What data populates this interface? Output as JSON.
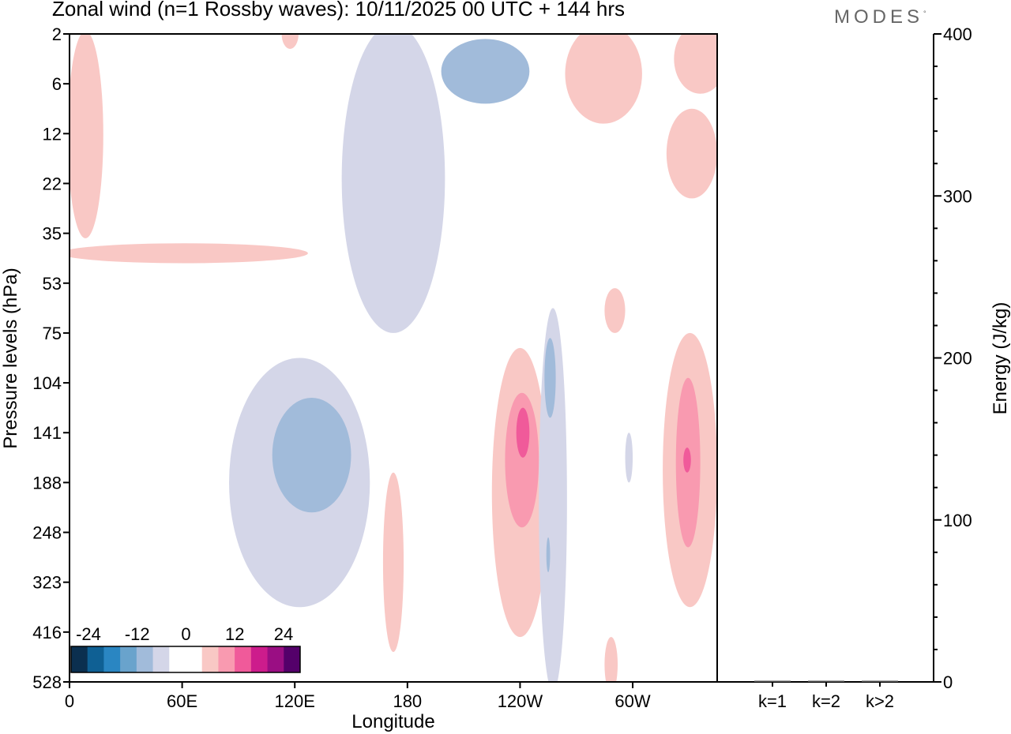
{
  "header": {
    "title": "Zonal wind (n=1 Rossby waves):  10/11/2025  00 UTC  + 144 hrs",
    "brand": "MODES",
    "brand_mark": "°"
  },
  "chart_data": [
    {
      "type": "heatmap",
      "title": "Zonal wind (n=1 Rossby waves)",
      "xlabel": "Longitude",
      "ylabel": "Pressure levels (hPa)",
      "x_ticks": [
        {
          "lon": 0,
          "label": "0"
        },
        {
          "lon": 60,
          "label": "60E"
        },
        {
          "lon": 120,
          "label": "120E"
        },
        {
          "lon": 180,
          "label": "180"
        },
        {
          "lon": 240,
          "label": "120W"
        },
        {
          "lon": 300,
          "label": "60W"
        }
      ],
      "xlim": [
        0,
        345
      ],
      "y_levels": [
        "2",
        "6",
        "12",
        "22",
        "35",
        "53",
        "75",
        "104",
        "141",
        "188",
        "248",
        "323",
        "416",
        "528"
      ],
      "colorbar": {
        "labels": [
          "-24",
          "-12",
          "0",
          "12",
          "24"
        ],
        "colors": [
          "#0b2f4f",
          "#0f6094",
          "#2a86c2",
          "#69a3cc",
          "#a1bbda",
          "#d4d6e8",
          "#ffffff",
          "#ffffff",
          "#f9c8c5",
          "#f99ab0",
          "#f05a9a",
          "#cd1c8c",
          "#9a0e83",
          "#54006a"
        ]
      },
      "regions": [
        {
          "name": "pos-upper-west",
          "lon": [
            18,
            -1
          ],
          "level": [
            -0.06,
            4.1
          ],
          "value": 8
        },
        {
          "name": "pos-small-120e",
          "lon": [
            127,
            -5
          ],
          "level": [
            4.2,
            4.6
          ],
          "value": 8
        },
        {
          "name": "pos-top-145e",
          "lon": [
            113,
            122
          ],
          "level": [
            -0.3,
            0.3
          ],
          "value": 6
        },
        {
          "name": "neg-top-center",
          "lon": [
            145,
            200
          ],
          "level": [
            -0.2,
            6.0
          ],
          "value": -8
        },
        {
          "name": "neg-top-core",
          "lon": [
            198,
            245
          ],
          "level": [
            0.1,
            1.4
          ],
          "value": -14
        },
        {
          "name": "pos-top-right",
          "lon": [
            264,
            305
          ],
          "level": [
            -0.2,
            1.8
          ],
          "value": 8
        },
        {
          "name": "pos-upper-far-right",
          "lon": [
            322,
            350
          ],
          "level": [
            -0.2,
            1.2
          ],
          "value": 8
        },
        {
          "name": "pos-upper-edge",
          "lon": [
            318,
            345
          ],
          "level": [
            1.5,
            3.3
          ],
          "value": 8
        },
        {
          "name": "neg-mid-west",
          "lon": [
            85,
            160
          ],
          "level": [
            6.5,
            11.5
          ],
          "value": -8
        },
        {
          "name": "neg-core-west",
          "lon": [
            108,
            150
          ],
          "level": [
            7.3,
            9.6
          ],
          "value": -16
        },
        {
          "name": "pos-narrow-170e",
          "lon": [
            167,
            178
          ],
          "level": [
            8.8,
            12.4
          ],
          "value": 8
        },
        {
          "name": "pos-main-120w",
          "lon": [
            225,
            255
          ],
          "level": [
            6.3,
            12.1
          ],
          "value": 8
        },
        {
          "name": "pos-main-mid",
          "lon": [
            232,
            250
          ],
          "level": [
            7.2,
            9.9
          ],
          "value": 13
        },
        {
          "name": "pos-main-core",
          "lon": [
            238,
            245
          ],
          "level": [
            7.5,
            8.5
          ],
          "value": 18
        },
        {
          "name": "neg-band-100w",
          "lon": [
            250,
            265
          ],
          "level": [
            5.5,
            13.2
          ],
          "value": -8
        },
        {
          "name": "neg-spot-95w",
          "lon": [
            253,
            259
          ],
          "level": [
            6.1,
            7.7
          ],
          "value": -14
        },
        {
          "name": "neg-tiny-95w",
          "lon": [
            254,
            256
          ],
          "level": [
            10.1,
            10.8
          ],
          "value": -14
        },
        {
          "name": "neg-spot-65w",
          "lon": [
            296,
            300
          ],
          "level": [
            8.0,
            9.0
          ],
          "value": -8
        },
        {
          "name": "pos-spot-70w",
          "lon": [
            285,
            296
          ],
          "level": [
            5.1,
            6.0
          ],
          "value": 8
        },
        {
          "name": "pos-right-40w",
          "lon": [
            316,
            345
          ],
          "level": [
            6.0,
            11.5
          ],
          "value": 8
        },
        {
          "name": "pos-right-mid",
          "lon": [
            323,
            336
          ],
          "level": [
            6.9,
            10.3
          ],
          "value": 13
        },
        {
          "name": "pos-right-core",
          "lon": [
            327,
            331
          ],
          "level": [
            8.3,
            8.8
          ],
          "value": 18
        },
        {
          "name": "pos-bottom-70w",
          "lon": [
            285,
            292
          ],
          "level": [
            12.1,
            13.2
          ],
          "value": 8
        }
      ]
    },
    {
      "type": "bar",
      "ylabel": "Energy (J/kg)",
      "categories": [
        "k=1",
        "k=2",
        "k>2"
      ],
      "values": [
        0.5,
        0.2,
        0.5
      ],
      "y_ticks": [
        "0",
        "100",
        "200",
        "300",
        "400"
      ],
      "ylim": [
        0,
        400
      ]
    }
  ]
}
